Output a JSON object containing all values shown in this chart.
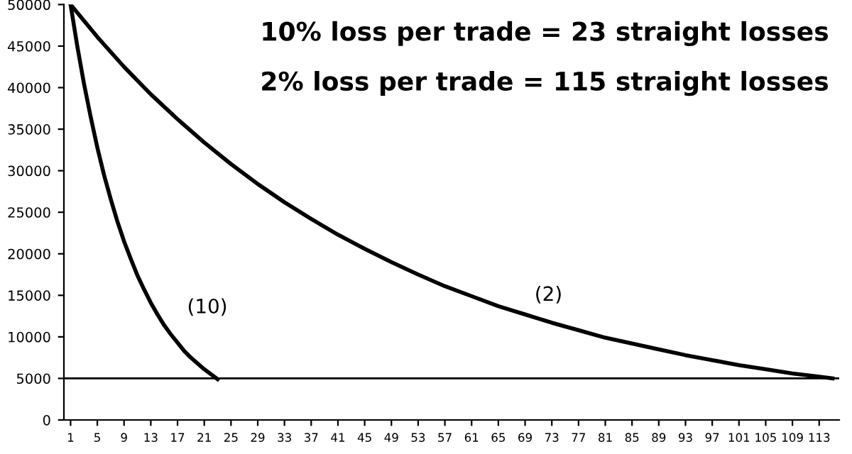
{
  "chart_data": {
    "type": "line",
    "series": [
      {
        "color": "#000000",
        "x": [
          1,
          2,
          3,
          4,
          5,
          6,
          7,
          8,
          9,
          10,
          11,
          12,
          13,
          14,
          15,
          16,
          17,
          18,
          19,
          20,
          21,
          22,
          23
        ],
        "values": [
          50000,
          45000,
          40500,
          36500,
          32800,
          29500,
          26600,
          23900,
          21500,
          19400,
          17400,
          15700,
          14100,
          12700,
          11400,
          10300,
          9300,
          8300,
          7500,
          6800,
          6100,
          5500,
          4900
        ]
      },
      {
        "color": "#000000",
        "x": [
          1,
          5,
          9,
          13,
          17,
          21,
          25,
          29,
          33,
          37,
          41,
          45,
          49,
          53,
          57,
          61,
          65,
          69,
          73,
          77,
          81,
          85,
          89,
          93,
          97,
          101,
          105,
          109,
          113,
          115
        ],
        "values": [
          50000,
          46100,
          42500,
          39200,
          36200,
          33400,
          30800,
          28400,
          26200,
          24200,
          22300,
          20600,
          19000,
          17500,
          16100,
          14900,
          13700,
          12700,
          11700,
          10800,
          9900,
          9200,
          8500,
          7800,
          7200,
          6600,
          6100,
          5600,
          5200,
          5000
        ]
      }
    ],
    "xlim": [
      0,
      116
    ],
    "xticks": [
      1,
      5,
      9,
      13,
      17,
      21,
      25,
      29,
      33,
      37,
      41,
      45,
      49,
      53,
      57,
      61,
      65,
      69,
      73,
      77,
      81,
      85,
      89,
      93,
      97,
      101,
      105,
      109,
      113
    ],
    "ylim": [
      0,
      50000
    ],
    "yticks": [
      0,
      5000,
      10000,
      15000,
      20000,
      25000,
      30000,
      35000,
      40000,
      45000,
      50000
    ],
    "ref_lines": [
      {
        "axis": "y",
        "value": 5000,
        "color": "#000000"
      }
    ],
    "annotations": [
      "10% loss per trade = 23 straight losses",
      "2% loss per trade = 115 straight losses",
      "(10)",
      "(2)"
    ],
    "grid": false,
    "legend": false,
    "marker": "none",
    "line_style": "solid"
  }
}
